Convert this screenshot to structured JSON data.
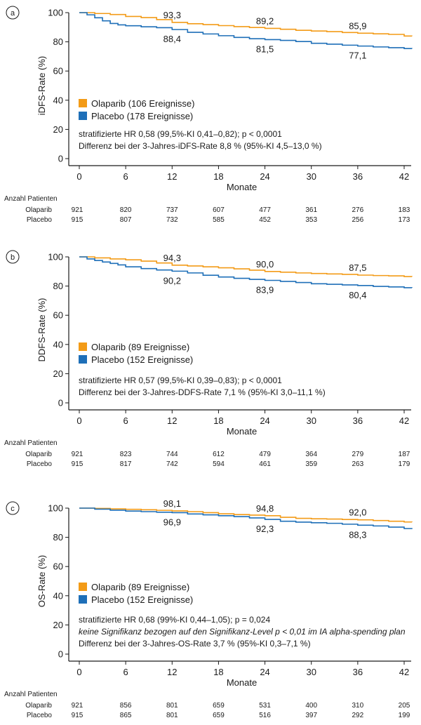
{
  "colors": {
    "olaparib": "#F39B17",
    "placebo": "#1E6FB8",
    "axis": "#1a1a1a"
  },
  "chart_data": [
    {
      "type": "line",
      "panel_label": "a",
      "ylabel": "iDFS-Rate (%)",
      "xlabel": "Monate",
      "xlim": [
        0,
        43
      ],
      "ylim": [
        0,
        100
      ],
      "xticks": [
        0,
        6,
        12,
        18,
        24,
        30,
        36,
        42
      ],
      "yticks": [
        0,
        20,
        40,
        60,
        80,
        100
      ],
      "legend_placement": "lower-left",
      "series": [
        {
          "name": "Olaparib (106 Ereignisse)",
          "key": "olaparib",
          "x": [
            0,
            2,
            4,
            6,
            8,
            10,
            12,
            14,
            16,
            18,
            20,
            22,
            24,
            26,
            28,
            30,
            32,
            34,
            36,
            38,
            40,
            42,
            43
          ],
          "y": [
            100,
            99.4,
            98.7,
            97.4,
            96.6,
            95.2,
            93.3,
            92.4,
            91.8,
            91.1,
            90.4,
            89.8,
            89.2,
            88.6,
            87.9,
            87.4,
            87.0,
            86.4,
            85.9,
            85.5,
            85.1,
            84.0,
            83.9
          ]
        },
        {
          "name": "Placebo (178 Ereignisse)",
          "key": "placebo",
          "x": [
            0,
            1,
            2,
            3,
            4,
            5,
            6,
            8,
            10,
            12,
            14,
            16,
            18,
            20,
            22,
            24,
            26,
            28,
            30,
            32,
            34,
            36,
            38,
            40,
            42,
            43
          ],
          "y": [
            100,
            98.5,
            96.5,
            94.4,
            92.6,
            91.6,
            91.0,
            90.3,
            89.7,
            88.4,
            86.5,
            85.4,
            84.2,
            83.0,
            82.1,
            81.5,
            81.0,
            80.2,
            79.0,
            78.4,
            77.7,
            77.1,
            76.5,
            76.0,
            75.4,
            75.3
          ]
        }
      ],
      "annotations": [
        {
          "series": "olaparib",
          "x": 12,
          "text": "93,3"
        },
        {
          "series": "olaparib",
          "x": 24,
          "text": "89,2"
        },
        {
          "series": "olaparib",
          "x": 36,
          "text": "85,9"
        },
        {
          "series": "placebo",
          "x": 12,
          "text": "88,4"
        },
        {
          "series": "placebo",
          "x": 24,
          "text": "81,5"
        },
        {
          "series": "placebo",
          "x": 36,
          "text": "77,1"
        }
      ],
      "stats": [
        {
          "text": "stratifizierte HR 0,58 (99,5%-KI 0,41–0,82); p < 0,0001",
          "italic": false
        },
        {
          "text": "Differenz bei der 3-Jahres-iDFS-Rate 8,8 % (95%-KI 4,5–13,0 %)",
          "italic": false
        }
      ],
      "risk_table": {
        "title": "Anzahl Patienten",
        "rows": [
          {
            "label": "Olaparib",
            "values": [
              "921",
              "820",
              "737",
              "607",
              "477",
              "361",
              "276",
              "183"
            ]
          },
          {
            "label": "Placebo",
            "values": [
              "915",
              "807",
              "732",
              "585",
              "452",
              "353",
              "256",
              "173"
            ]
          }
        ]
      }
    },
    {
      "type": "line",
      "panel_label": "b",
      "ylabel": "DDFS-Rate (%)",
      "xlabel": "Monate",
      "xlim": [
        0,
        43
      ],
      "ylim": [
        0,
        100
      ],
      "xticks": [
        0,
        6,
        12,
        18,
        24,
        30,
        36,
        42
      ],
      "yticks": [
        0,
        20,
        40,
        60,
        80,
        100
      ],
      "legend_placement": "lower-left",
      "series": [
        {
          "name": "Olaparib (89 Ereignisse)",
          "key": "olaparib",
          "x": [
            0,
            2,
            4,
            6,
            8,
            10,
            12,
            14,
            16,
            18,
            20,
            22,
            24,
            26,
            28,
            30,
            32,
            34,
            36,
            38,
            40,
            42,
            43
          ],
          "y": [
            100,
            99.3,
            98.6,
            98.0,
            97.1,
            95.8,
            94.3,
            93.8,
            93.2,
            92.5,
            91.8,
            90.9,
            90.0,
            89.5,
            89.0,
            88.6,
            88.3,
            88.0,
            87.5,
            87.2,
            87.0,
            86.5,
            86.4
          ]
        },
        {
          "name": "Placebo (152 Ereignisse)",
          "key": "placebo",
          "x": [
            0,
            1,
            2,
            3,
            4,
            5,
            6,
            8,
            10,
            12,
            14,
            16,
            18,
            20,
            22,
            24,
            26,
            28,
            30,
            32,
            34,
            36,
            38,
            40,
            42,
            43
          ],
          "y": [
            100,
            98.6,
            97.5,
            96.5,
            95.5,
            94.5,
            93.2,
            92.0,
            91.0,
            90.2,
            89.0,
            87.4,
            86.2,
            85.3,
            84.6,
            83.9,
            83.2,
            82.4,
            81.6,
            81.2,
            80.8,
            80.4,
            79.8,
            79.4,
            78.9,
            78.8
          ]
        }
      ],
      "annotations": [
        {
          "series": "olaparib",
          "x": 12,
          "text": "94,3"
        },
        {
          "series": "olaparib",
          "x": 24,
          "text": "90,0"
        },
        {
          "series": "olaparib",
          "x": 36,
          "text": "87,5"
        },
        {
          "series": "placebo",
          "x": 12,
          "text": "90,2"
        },
        {
          "series": "placebo",
          "x": 24,
          "text": "83,9"
        },
        {
          "series": "placebo",
          "x": 36,
          "text": "80,4"
        }
      ],
      "stats": [
        {
          "text": "stratifizierte HR 0,57 (99,5%-KI 0,39–0,83); p < 0,0001",
          "italic": false
        },
        {
          "text": "Differenz bei der 3-Jahres-DDFS-Rate 7,1 % (95%-KI 3,0–11,1 %)",
          "italic": false
        }
      ],
      "risk_table": {
        "title": "Anzahl Patienten",
        "rows": [
          {
            "label": "Olaparib",
            "values": [
              "921",
              "823",
              "744",
              "612",
              "479",
              "364",
              "279",
              "187"
            ]
          },
          {
            "label": "Placebo",
            "values": [
              "915",
              "817",
              "742",
              "594",
              "461",
              "359",
              "263",
              "179"
            ]
          }
        ]
      }
    },
    {
      "type": "line",
      "panel_label": "c",
      "ylabel": "OS-Rate (%)",
      "xlabel": "Monate",
      "xlim": [
        0,
        43
      ],
      "ylim": [
        0,
        100
      ],
      "xticks": [
        0,
        6,
        12,
        18,
        24,
        30,
        36,
        42
      ],
      "yticks": [
        0,
        20,
        40,
        60,
        80,
        100
      ],
      "legend_placement": "lower-left",
      "series": [
        {
          "name": "Olaparib (89 Ereignisse)",
          "key": "olaparib",
          "x": [
            0,
            2,
            4,
            6,
            8,
            10,
            12,
            14,
            16,
            18,
            20,
            22,
            24,
            26,
            28,
            30,
            32,
            34,
            36,
            38,
            40,
            42,
            43
          ],
          "y": [
            100,
            99.8,
            99.5,
            99.2,
            98.9,
            98.5,
            98.1,
            97.6,
            96.9,
            96.1,
            95.6,
            95.2,
            94.8,
            93.7,
            93.0,
            92.7,
            92.5,
            92.2,
            92.0,
            91.5,
            91.0,
            90.5,
            90.4
          ]
        },
        {
          "name": "Placebo (152 Ereignisse)",
          "key": "placebo",
          "x": [
            0,
            2,
            4,
            6,
            8,
            10,
            12,
            14,
            16,
            18,
            20,
            22,
            24,
            26,
            28,
            30,
            32,
            34,
            36,
            38,
            40,
            42,
            43
          ],
          "y": [
            100,
            99.3,
            98.6,
            98.0,
            97.6,
            97.2,
            96.9,
            96.0,
            95.4,
            94.8,
            94.2,
            93.3,
            92.3,
            91.0,
            90.4,
            90.0,
            89.6,
            89.0,
            88.3,
            87.8,
            87.0,
            86.0,
            85.7
          ]
        }
      ],
      "annotations": [
        {
          "series": "olaparib",
          "x": 12,
          "text": "98,1"
        },
        {
          "series": "olaparib",
          "x": 24,
          "text": "94,8"
        },
        {
          "series": "olaparib",
          "x": 36,
          "text": "92,0"
        },
        {
          "series": "placebo",
          "x": 12,
          "text": "96,9"
        },
        {
          "series": "placebo",
          "x": 24,
          "text": "92,3"
        },
        {
          "series": "placebo",
          "x": 36,
          "text": "88,3"
        }
      ],
      "stats": [
        {
          "text": "stratifizierte HR 0,68 (99%-KI 0,44–1,05); p = 0,024",
          "italic": false
        },
        {
          "text": "keine Signifikanz bezogen auf den Signifikanz-Level p < 0,01 im IA alpha-spending plan",
          "italic": true
        },
        {
          "text": "Differenz bei der 3-Jahres-OS-Rate 3,7 % (95%-KI 0,3–7,1 %)",
          "italic": false
        }
      ],
      "risk_table": {
        "title": "Anzahl Patienten",
        "rows": [
          {
            "label": "Olaparib",
            "values": [
              "921",
              "856",
              "801",
              "659",
              "531",
              "400",
              "310",
              "205"
            ]
          },
          {
            "label": "Placebo",
            "values": [
              "915",
              "865",
              "801",
              "659",
              "516",
              "397",
              "292",
              "199"
            ]
          }
        ]
      }
    }
  ]
}
